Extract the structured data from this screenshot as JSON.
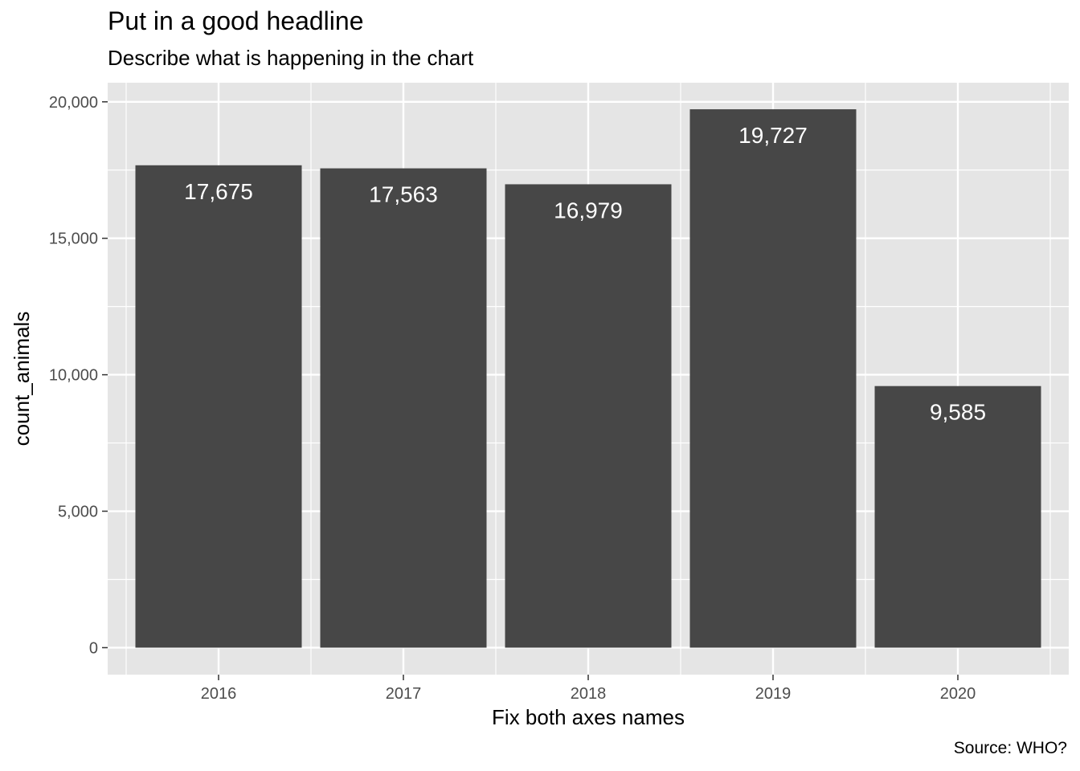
{
  "chart_data": {
    "type": "bar",
    "title": "Put in a good headline",
    "subtitle": "Describe what is happening in the chart",
    "xlabel": "Fix both axes names",
    "ylabel": "count_animals",
    "caption": "Source: WHO?",
    "categories": [
      "2016",
      "2017",
      "2018",
      "2019",
      "2020"
    ],
    "values": [
      17675,
      17563,
      16979,
      19727,
      9585
    ],
    "data_labels": [
      "17,675",
      "17,563",
      "16,979",
      "19,727",
      "9,585"
    ],
    "yticks": [
      0,
      5000,
      10000,
      15000,
      20000
    ],
    "ytick_labels": [
      "0",
      "5,000",
      "10,000",
      "15,000",
      "20,000"
    ],
    "ylim": [
      -988,
      20700
    ],
    "grid": true,
    "colors": {
      "bar": "#474747",
      "panel": "#e5e5e5",
      "grid": "#ffffff",
      "label_text": "#ffffff",
      "tick_text": "#4d4d4d"
    }
  }
}
